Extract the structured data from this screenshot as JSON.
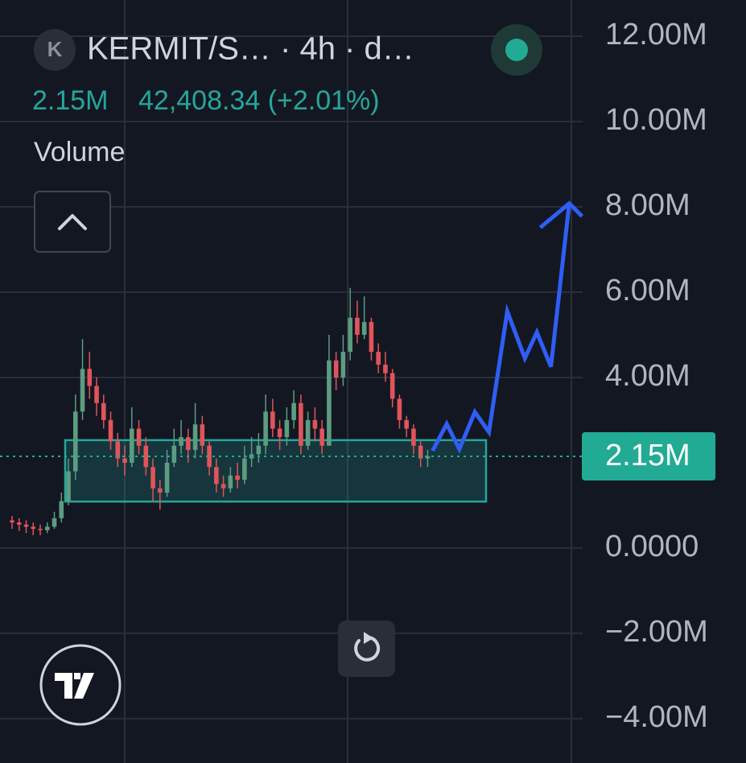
{
  "chart_data": {
    "type": "candlestick",
    "logo": "K",
    "title": "KERMIT/S… · 4h · d…",
    "header_value": "2.15M",
    "header_change": "42,408.34 (+2.01%)",
    "indicator": "Volume",
    "ylim": [
      -5.04,
      12.85
    ],
    "yticks": [
      {
        "value": 12,
        "label": "12.00M"
      },
      {
        "value": 10,
        "label": "10.00M"
      },
      {
        "value": 8,
        "label": "8.00M"
      },
      {
        "value": 6,
        "label": "6.00M"
      },
      {
        "value": 4,
        "label": "4.00M"
      },
      {
        "value": 0,
        "label": "0.0000"
      },
      {
        "value": -2,
        "label": "−2.00M"
      },
      {
        "value": -4,
        "label": "−4.00M"
      }
    ],
    "xlim": [
      0,
      81
    ],
    "grid": true,
    "up_color": "#5c9c80",
    "down_color": "#e0545a",
    "open": [
      0.65,
      0.6,
      0.55,
      0.5,
      0.45,
      0.42,
      0.5,
      0.7,
      1.1,
      1.8,
      3.2,
      4.2,
      3.8,
      3.4,
      3.0,
      2.5,
      2.1,
      2.0,
      2.8,
      2.4,
      1.9,
      1.4,
      1.3,
      2.0,
      2.4,
      2.6,
      2.3,
      2.9,
      2.4,
      1.9,
      1.5,
      1.4,
      1.7,
      1.6,
      2.1,
      2.2,
      2.4,
      3.2,
      2.8,
      2.6,
      3.0,
      3.4,
      2.4,
      3.0,
      2.8,
      2.4,
      4.4,
      4.0,
      4.6,
      5.4,
      5.0,
      5.3,
      4.6,
      4.3,
      4.1,
      3.5,
      3.0,
      2.8,
      2.4,
      2.1
    ],
    "high": [
      0.75,
      0.7,
      0.65,
      0.6,
      0.55,
      0.6,
      0.85,
      1.3,
      2.1,
      3.6,
      4.9,
      4.6,
      4.0,
      3.6,
      3.2,
      2.7,
      2.4,
      3.3,
      3.0,
      2.6,
      2.1,
      1.6,
      2.3,
      2.8,
      3.0,
      2.8,
      3.4,
      3.1,
      2.5,
      2.1,
      1.7,
      1.9,
      2.0,
      2.4,
      2.6,
      2.7,
      3.6,
      3.5,
      3.0,
      3.3,
      3.7,
      3.6,
      3.2,
      3.3,
      3.0,
      5.0,
      4.6,
      5.0,
      6.1,
      5.8,
      5.9,
      5.4,
      4.8,
      4.6,
      4.2,
      3.6,
      3.1,
      2.9,
      2.5,
      2.3
    ],
    "low": [
      0.45,
      0.4,
      0.35,
      0.3,
      0.3,
      0.35,
      0.45,
      0.6,
      1.0,
      1.6,
      3.0,
      3.5,
      3.1,
      2.8,
      2.3,
      1.9,
      1.7,
      1.9,
      2.2,
      1.7,
      1.1,
      0.9,
      1.2,
      1.9,
      2.2,
      2.0,
      2.1,
      2.2,
      1.7,
      1.3,
      1.2,
      1.3,
      1.4,
      1.5,
      1.9,
      2.0,
      2.2,
      2.6,
      2.3,
      2.4,
      2.8,
      2.2,
      2.3,
      2.5,
      2.2,
      2.4,
      3.7,
      3.8,
      4.4,
      4.8,
      4.9,
      4.4,
      4.1,
      3.9,
      3.3,
      2.8,
      2.6,
      2.2,
      1.9,
      1.9
    ],
    "close": [
      0.6,
      0.55,
      0.5,
      0.45,
      0.42,
      0.5,
      0.7,
      1.1,
      1.8,
      3.2,
      4.2,
      3.8,
      3.4,
      3.0,
      2.5,
      2.1,
      2.0,
      2.8,
      2.4,
      1.9,
      1.4,
      1.3,
      2.0,
      2.4,
      2.6,
      2.3,
      2.9,
      2.4,
      1.9,
      1.5,
      1.4,
      1.7,
      1.6,
      2.1,
      2.2,
      2.4,
      3.2,
      2.8,
      2.6,
      3.0,
      3.4,
      2.4,
      3.0,
      2.8,
      2.4,
      4.4,
      4.0,
      4.6,
      5.4,
      5.0,
      5.3,
      4.6,
      4.3,
      4.1,
      3.5,
      3.0,
      2.8,
      2.4,
      2.1,
      2.15
    ],
    "last_price": {
      "value": 2.15,
      "label": "2.15M"
    },
    "price_color": "#22ab94",
    "zone": [
      1.09,
      2.53
    ],
    "zone_color": "#26a69a",
    "projection": {
      "color": "#2f5ef5",
      "x": [
        59.7,
        61.7,
        63.5,
        65.7,
        67.7,
        70.3,
        72.8,
        74.5,
        76.5,
        79.1
      ],
      "values": [
        2.28,
        2.91,
        2.32,
        3.19,
        2.72,
        5.55,
        4.45,
        5.06,
        4.25,
        8.08
      ]
    }
  }
}
